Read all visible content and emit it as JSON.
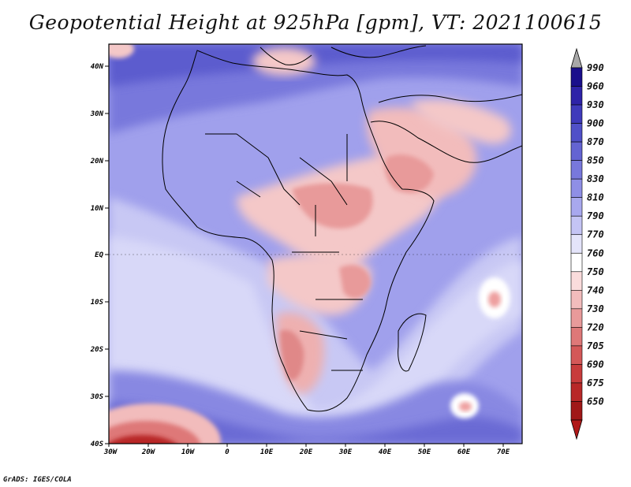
{
  "title": "Geopotential Height at 925hPa [gpm], VT: 2021100615",
  "credit": "GrADS: IGES/COLA",
  "lat_labels": [
    "40N",
    "30N",
    "20N",
    "10N",
    "EQ",
    "10S",
    "20S",
    "30S",
    "40S"
  ],
  "lon_labels": [
    "30W",
    "20W",
    "10W",
    "0",
    "10E",
    "20E",
    "30E",
    "40E",
    "50E",
    "60E",
    "70E"
  ],
  "colorbar": {
    "levels": [
      "990",
      "960",
      "930",
      "900",
      "870",
      "850",
      "830",
      "810",
      "790",
      "770",
      "760",
      "750",
      "740",
      "730",
      "720",
      "705",
      "690",
      "675",
      "650"
    ],
    "colors": [
      "#1a0f8c",
      "#2e23a8",
      "#3f3abb",
      "#5050c8",
      "#6464d2",
      "#7878dc",
      "#8f8fe6",
      "#a8a8ee",
      "#c4c4f4",
      "#e4e4fa",
      "#ffffff",
      "#fadcdc",
      "#f2bcbc",
      "#e89a9a",
      "#de7878",
      "#d45858",
      "#c83c3c",
      "#b82828",
      "#a01818"
    ],
    "top_arrow_color": "#a8a8a8",
    "bottom_arrow_color": "#b01818"
  }
}
